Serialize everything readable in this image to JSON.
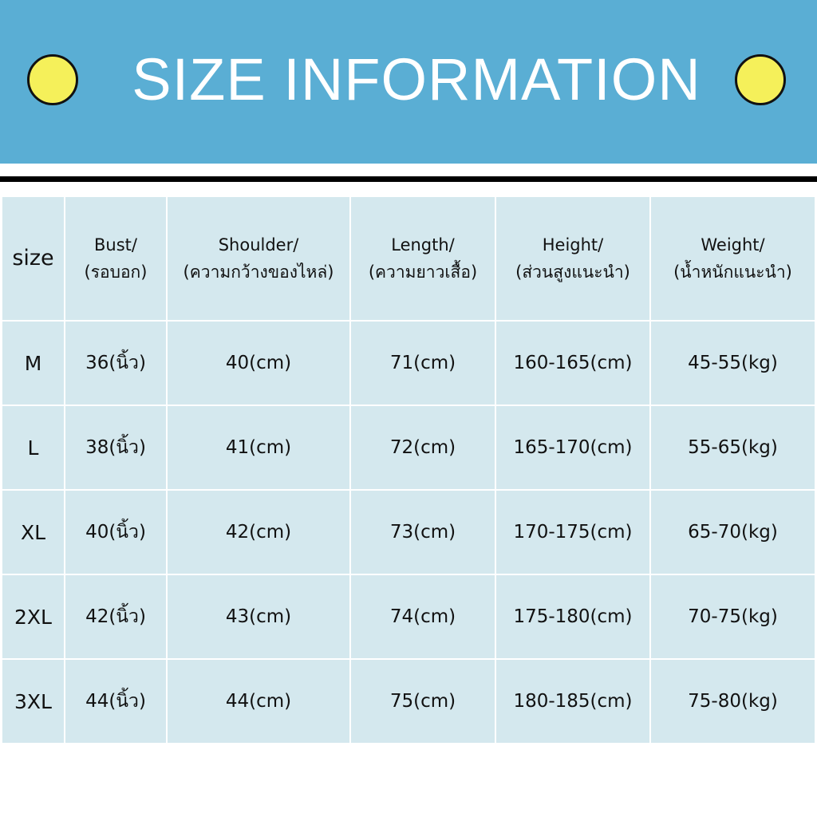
{
  "header": {
    "title": "SIZE INFORMATION"
  },
  "table": {
    "columns": [
      [
        "size"
      ],
      [
        "Bust/",
        "(รอบอก)"
      ],
      [
        "Shoulder/",
        "(ความกว้างของไหล่)"
      ],
      [
        "Length/",
        "(ความยาวเสื้อ)"
      ],
      [
        "Height/",
        "(ส่วนสูงแนะนำ)"
      ],
      [
        "Weight/",
        "(น้ำหนักแนะนำ)"
      ]
    ],
    "rows": [
      [
        "M",
        "36(นิ้ว)",
        "40(cm)",
        "71(cm)",
        "160-165(cm)",
        "45-55(kg)"
      ],
      [
        "L",
        "38(นิ้ว)",
        "41(cm)",
        "72(cm)",
        "165-170(cm)",
        "55-65(kg)"
      ],
      [
        "XL",
        "40(นิ้ว)",
        "42(cm)",
        "73(cm)",
        "170-175(cm)",
        "65-70(kg)"
      ],
      [
        "2XL",
        "42(นิ้ว)",
        "43(cm)",
        "74(cm)",
        "175-180(cm)",
        "70-75(kg)"
      ],
      [
        "3XL",
        "44(นิ้ว)",
        "44(cm)",
        "75(cm)",
        "180-185(cm)",
        "75-80(kg)"
      ]
    ]
  }
}
